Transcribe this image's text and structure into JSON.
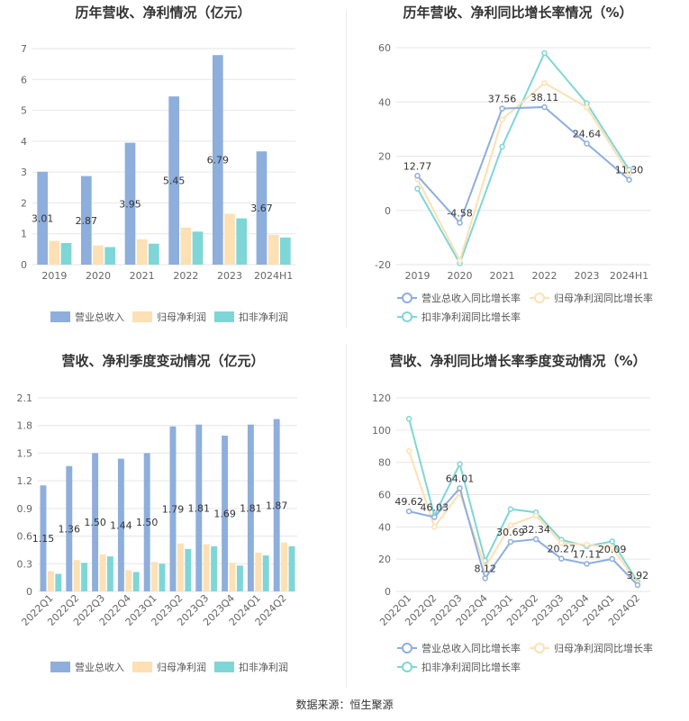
{
  "footer": {
    "source": "数据来源：恒生聚源"
  },
  "colors": {
    "revenue": "#8eaedc",
    "net_profit": "#fde0b4",
    "deducted_profit": "#7fd6d6",
    "axis_text": "#666666",
    "grid": "#e6e6e6",
    "title": "#333333"
  },
  "chart_data": [
    {
      "type": "bar",
      "title": "历年营收、净利情况（亿元）",
      "categories": [
        "2019",
        "2020",
        "2021",
        "2022",
        "2023",
        "2024H1"
      ],
      "ylim": [
        0,
        7
      ],
      "yticks": [
        0,
        1,
        2,
        3,
        4,
        5,
        6,
        7
      ],
      "grid": true,
      "legend_position": "bottom",
      "series": [
        {
          "name": "营业总收入",
          "values": [
            3.01,
            2.87,
            3.95,
            5.45,
            6.79,
            3.67
          ],
          "labels": [
            "3.01",
            "2.87",
            "3.95",
            "5.45",
            "6.79",
            "3.67"
          ]
        },
        {
          "name": "归母净利润",
          "values": [
            0.77,
            0.62,
            0.82,
            1.2,
            1.65,
            0.96
          ]
        },
        {
          "name": "扣非净利润",
          "values": [
            0.7,
            0.57,
            0.68,
            1.07,
            1.5,
            0.88
          ]
        }
      ]
    },
    {
      "type": "line",
      "title": "历年营收、净利同比增长率情况（%）",
      "categories": [
        "2019",
        "2020",
        "2021",
        "2022",
        "2023",
        "2024H1"
      ],
      "ylim": [
        -20,
        60
      ],
      "yticks": [
        -20,
        0,
        20,
        40,
        60
      ],
      "grid": true,
      "legend_position": "bottom",
      "series": [
        {
          "name": "营业总收入同比增长率",
          "values": [
            12.77,
            -4.58,
            37.56,
            38.11,
            24.64,
            11.3
          ],
          "labels": [
            "12.77",
            "-4.58",
            "37.56",
            "38.11",
            "24.64",
            "11.30"
          ]
        },
        {
          "name": "归母净利润同比增长率",
          "values": [
            11.5,
            -18.5,
            33.5,
            47.0,
            38.0,
            13.5
          ]
        },
        {
          "name": "扣非净利润同比增长率",
          "values": [
            8.0,
            -19.5,
            23.5,
            58.0,
            39.5,
            15.0
          ]
        }
      ]
    },
    {
      "type": "bar",
      "title": "营收、净利季度变动情况（亿元）",
      "categories": [
        "2022Q1",
        "2022Q2",
        "2022Q3",
        "2022Q4",
        "2023Q1",
        "2023Q2",
        "2023Q3",
        "2023Q4",
        "2024Q1",
        "2024Q2"
      ],
      "ylim": [
        0,
        2.1
      ],
      "yticks": [
        0,
        0.3,
        0.6,
        0.9,
        1.2,
        1.5,
        1.8,
        2.1
      ],
      "ytick_labels": [
        "0",
        "0.3",
        "0.6",
        "0.9",
        "1.2",
        "1.5",
        "1.8",
        "2.1"
      ],
      "grid": true,
      "legend_position": "bottom",
      "series": [
        {
          "name": "营业总收入",
          "values": [
            1.15,
            1.36,
            1.5,
            1.44,
            1.5,
            1.79,
            1.81,
            1.69,
            1.81,
            1.87
          ],
          "labels": [
            "1.15",
            "1.36",
            "1.50",
            "1.44",
            "1.50",
            "1.79",
            "1.81",
            "1.69",
            "1.81",
            "1.87"
          ]
        },
        {
          "name": "归母净利润",
          "values": [
            0.22,
            0.34,
            0.4,
            0.23,
            0.32,
            0.52,
            0.51,
            0.31,
            0.42,
            0.53
          ]
        },
        {
          "name": "扣非净利润",
          "values": [
            0.19,
            0.31,
            0.38,
            0.21,
            0.3,
            0.46,
            0.49,
            0.28,
            0.39,
            0.49
          ]
        }
      ]
    },
    {
      "type": "line",
      "title": "营收、净利同比增长率季度变动情况（%）",
      "categories": [
        "2022Q1",
        "2022Q2",
        "2022Q3",
        "2022Q4",
        "2023Q1",
        "2023Q2",
        "2023Q3",
        "2023Q4",
        "2024Q1",
        "2024Q2"
      ],
      "ylim": [
        0,
        120
      ],
      "yticks": [
        0,
        20,
        40,
        60,
        80,
        100,
        120
      ],
      "grid": true,
      "legend_position": "bottom",
      "series": [
        {
          "name": "营业总收入同比增长率",
          "values": [
            49.62,
            46.03,
            64.01,
            8.12,
            30.69,
            32.34,
            20.27,
            17.11,
            20.09,
            3.92
          ],
          "labels": [
            "49.62",
            "46.03",
            "64.01",
            "8.12",
            "30.69",
            "32.34",
            "20.27",
            "17.11",
            "20.09",
            "3.92"
          ]
        },
        {
          "name": "归母净利润同比增长率",
          "values": [
            87.0,
            40.0,
            61.0,
            15.0,
            41.0,
            47.0,
            30.0,
            29.0,
            27.0,
            5.0
          ]
        },
        {
          "name": "扣非净利润同比增长率",
          "values": [
            107.0,
            47.0,
            79.0,
            19.0,
            51.0,
            49.0,
            32.0,
            28.0,
            31.0,
            6.0
          ]
        }
      ]
    }
  ]
}
